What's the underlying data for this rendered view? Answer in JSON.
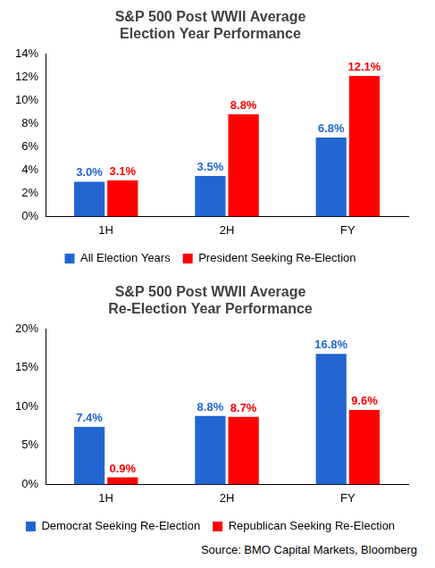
{
  "chart_data": [
    {
      "type": "bar",
      "title": "S&P 500 Post WWII Average Election Year Performance",
      "categories": [
        "1H",
        "2H",
        "FY"
      ],
      "series": [
        {
          "name": "All Election Years",
          "color": "#2366d1",
          "values": [
            3.0,
            3.5,
            6.8
          ],
          "value_labels": [
            "3.0%",
            "3.5%",
            "6.8%"
          ]
        },
        {
          "name": "President Seeking Re-Election",
          "color": "#ff0000",
          "values": [
            3.1,
            8.8,
            12.1
          ],
          "value_labels": [
            "3.1%",
            "8.8%",
            "12.1%"
          ]
        }
      ],
      "ylim": [
        0,
        14
      ],
      "yticks": [
        {
          "value": 0,
          "label": "0%"
        },
        {
          "value": 2,
          "label": "2%"
        },
        {
          "value": 4,
          "label": "4%"
        },
        {
          "value": 6,
          "label": "6%"
        },
        {
          "value": 8,
          "label": "8%"
        },
        {
          "value": 10,
          "label": "10%"
        },
        {
          "value": 12,
          "label": "12%"
        },
        {
          "value": 14,
          "label": "14%"
        }
      ],
      "grid": false,
      "legend": "bottom",
      "data_labels": true
    },
    {
      "type": "bar",
      "title": "S&P 500 Post WWII Average Re-Election Year Performance",
      "categories": [
        "1H",
        "2H",
        "FY"
      ],
      "series": [
        {
          "name": "Democrat Seeking Re-Election",
          "color": "#2366d1",
          "values": [
            7.4,
            8.8,
            16.8
          ],
          "value_labels": [
            "7.4%",
            "8.8%",
            "16.8%"
          ]
        },
        {
          "name": "Republican Seeking Re-Election",
          "color": "#ff0000",
          "values": [
            0.9,
            8.7,
            9.6
          ],
          "value_labels": [
            "0.9%",
            "8.7%",
            "9.6%"
          ]
        }
      ],
      "ylim": [
        0,
        20
      ],
      "yticks": [
        {
          "value": 0,
          "label": "0%"
        },
        {
          "value": 5,
          "label": "5%"
        },
        {
          "value": 10,
          "label": "10%"
        },
        {
          "value": 15,
          "label": "15%"
        },
        {
          "value": 20,
          "label": "20%"
        }
      ],
      "grid": false,
      "legend": "bottom",
      "data_labels": true,
      "annotation": "Source: BMO Capital Markets, Bloomberg"
    }
  ]
}
